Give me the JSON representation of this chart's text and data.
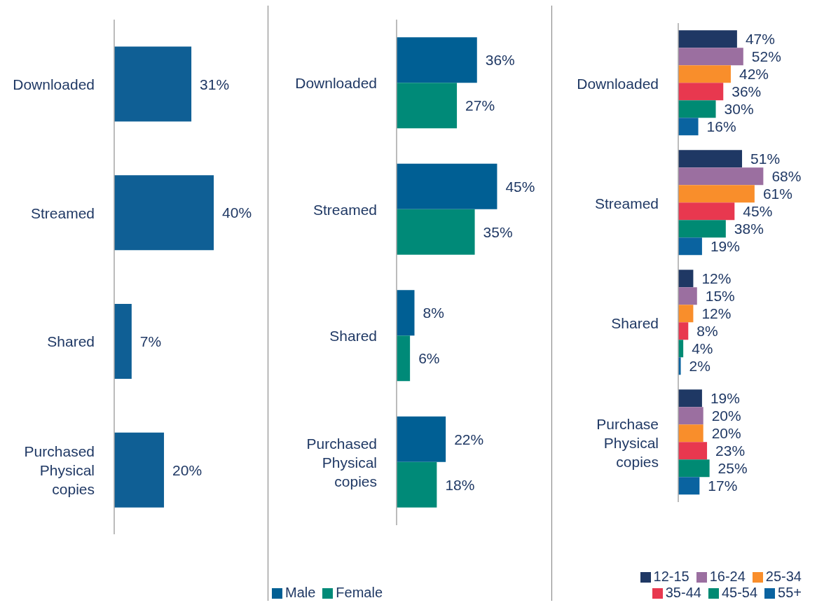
{
  "chart_data": [
    {
      "type": "bar",
      "orientation": "horizontal",
      "categories": [
        "Downloaded",
        "Streamed",
        "Shared",
        "Purchased Physical copies"
      ],
      "legend": false,
      "series": [
        {
          "color": "#0f5f95",
          "values": [
            31,
            40,
            7,
            20
          ],
          "value_labels": [
            "31%",
            "40%",
            "7%",
            "20%"
          ]
        }
      ]
    },
    {
      "type": "bar",
      "orientation": "horizontal",
      "categories": [
        "Downloaded",
        "Streamed",
        "Shared",
        "Purchased Physical copies"
      ],
      "legend": "bottom",
      "series": [
        {
          "name": "Male",
          "color": "#005f94",
          "values": [
            36,
            45,
            8,
            22
          ],
          "value_labels": [
            "36%",
            "45%",
            "8%",
            "22%"
          ]
        },
        {
          "name": "Female",
          "color": "#008a78",
          "values": [
            27,
            35,
            6,
            18
          ],
          "value_labels": [
            "27%",
            "35%",
            "6%",
            "18%"
          ]
        }
      ]
    },
    {
      "type": "bar",
      "orientation": "horizontal",
      "categories": [
        "Downloaded",
        "Streamed",
        "Shared",
        "Purchase Physical copies"
      ],
      "legend": "bottom right",
      "series": [
        {
          "name": "12-15",
          "color": "#1f3864",
          "values": [
            47,
            51,
            12,
            19
          ],
          "value_labels": [
            "47%",
            "51%",
            "12%",
            "19%"
          ]
        },
        {
          "name": "16-24",
          "color": "#9b6fa0",
          "values": [
            52,
            68,
            15,
            20
          ],
          "value_labels": [
            "52%",
            "68%",
            "15%",
            "20%"
          ]
        },
        {
          "name": "25-34",
          "color": "#f98e2b",
          "values": [
            42,
            61,
            12,
            20
          ],
          "value_labels": [
            "42%",
            "61%",
            "12%",
            "20%"
          ]
        },
        {
          "name": "35-44",
          "color": "#e8384f",
          "values": [
            36,
            45,
            8,
            23
          ],
          "value_labels": [
            "36%",
            "45%",
            "8%",
            "23%"
          ]
        },
        {
          "name": "45-54",
          "color": "#008a73",
          "values": [
            30,
            38,
            4,
            25
          ],
          "value_labels": [
            "30%",
            "38%",
            "4%",
            "25%"
          ]
        },
        {
          "name": "55+",
          "color": "#0a63a0",
          "values": [
            16,
            19,
            2,
            17
          ],
          "value_labels": [
            "16%",
            "19%",
            "2%",
            "17%"
          ]
        }
      ]
    }
  ]
}
